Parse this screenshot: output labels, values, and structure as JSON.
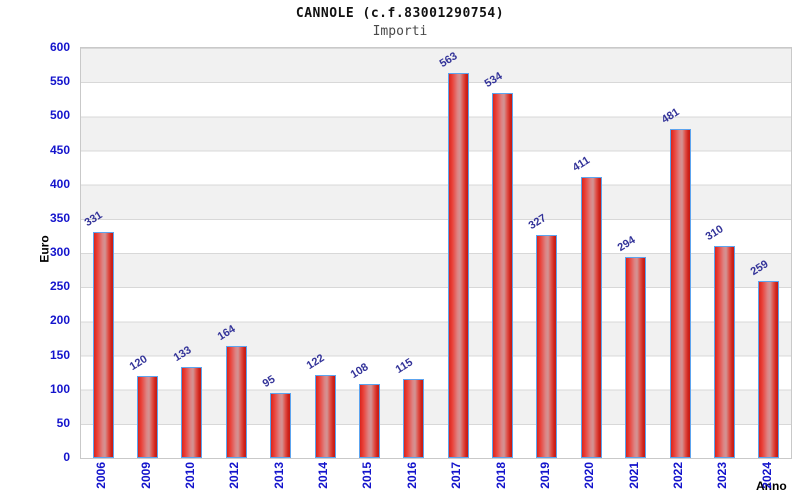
{
  "header": {
    "title": "CANNOLE (c.f.83001290754)",
    "subtitle": "Importi"
  },
  "axes": {
    "y_label": "Euro",
    "x_label": "Anno"
  },
  "chart_data": {
    "type": "bar",
    "title": "CANNOLE (c.f.83001290754)",
    "subtitle": "Importi",
    "xlabel": "Anno",
    "ylabel": "Euro",
    "categories": [
      "2006",
      "2009",
      "2010",
      "2012",
      "2013",
      "2014",
      "2015",
      "2016",
      "2017",
      "2018",
      "2019",
      "2020",
      "2021",
      "2022",
      "2023",
      "2024"
    ],
    "values": [
      331,
      120,
      133,
      164,
      95,
      122,
      108,
      115,
      563,
      534,
      327,
      411,
      294,
      481,
      310,
      259
    ],
    "ylim": [
      0,
      600
    ],
    "yticks": [
      0,
      50,
      100,
      150,
      200,
      250,
      300,
      350,
      400,
      450,
      500,
      550,
      600
    ],
    "grid": true,
    "legend_position": "none",
    "colors": {
      "bar_fill_left": "#da251d",
      "bar_fill_highlight": "#d29494",
      "bar_fill_right": "#c41b14",
      "bar_border": "#5ca4ef",
      "axis_tick_label": "#1414cc",
      "value_label": "#333399",
      "band_gray": "#f1f1f1",
      "grid_line": "#d8d8d8",
      "plot_border": "#c9c9c9",
      "subtitle_text": "#4a4a4a"
    }
  }
}
